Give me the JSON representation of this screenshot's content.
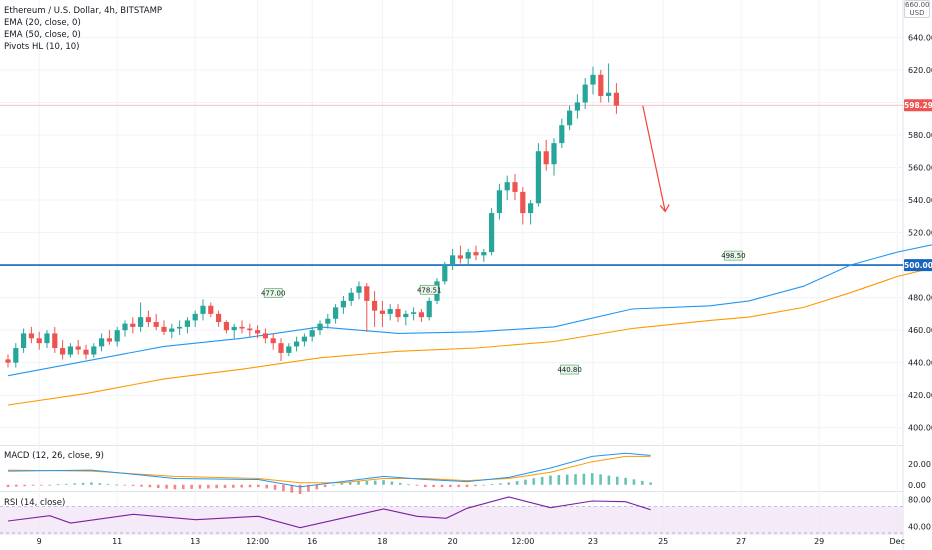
{
  "legend": {
    "symbol": "Ethereum / U.S. Dollar, 4h, BITSTAMP",
    "ema20": "EMA (20, close, 0)",
    "ema50": "EMA (50, close, 0)",
    "pivots": "Pivots HL (10, 10)"
  },
  "currency": "USD",
  "currency_top": "660.00",
  "macd_label": "MACD (12, 26, close, 9)",
  "rsi_label": "RSI (14, close)",
  "price_tag": "598.29",
  "level_tag": "500.00",
  "colors": {
    "up": "#26a69a",
    "down": "#ef5350",
    "ema20": "#2196f3",
    "ema50": "#ff9800",
    "level": "#1565c0",
    "arrow": "#f44336",
    "rsi": "#7b1fa2",
    "macd": "#2196f3",
    "signal": "#ff9800",
    "pivot_bg": "#e8f5e9"
  },
  "chart_data": [
    {
      "type": "candlestick",
      "title": "Ethereum / U.S. Dollar, 4h, BITSTAMP",
      "y_ticks": [
        "400.00",
        "420.00",
        "440.00",
        "460.00",
        "480.00",
        "500.00",
        "520.00",
        "540.00",
        "560.00",
        "580.00",
        "600.00",
        "620.00",
        "640.00"
      ],
      "x_ticks": [
        "9",
        "11",
        "13",
        "12:00",
        "16",
        "18",
        "20",
        "12:00",
        "23",
        "25",
        "27",
        "29",
        "Dec"
      ],
      "ylim": [
        390,
        663
      ],
      "candles": [
        [
          442,
          445,
          437,
          440
        ],
        [
          440,
          452,
          437,
          449
        ],
        [
          449,
          461,
          446,
          458
        ],
        [
          458,
          462,
          452,
          455
        ],
        [
          455,
          459,
          448,
          452
        ],
        [
          452,
          460,
          449,
          458
        ],
        [
          458,
          462,
          446,
          449
        ],
        [
          449,
          454,
          442,
          445
        ],
        [
          445,
          452,
          443,
          450
        ],
        [
          450,
          454,
          445,
          448
        ],
        [
          448,
          451,
          442,
          445
        ],
        [
          445,
          452,
          443,
          450
        ],
        [
          450,
          458,
          447,
          455
        ],
        [
          455,
          460,
          451,
          453
        ],
        [
          453,
          462,
          450,
          460
        ],
        [
          460,
          466,
          456,
          464
        ],
        [
          464,
          468,
          458,
          462
        ],
        [
          462,
          477,
          459,
          468
        ],
        [
          468,
          472,
          462,
          465
        ],
        [
          465,
          470,
          460,
          462
        ],
        [
          462,
          466,
          457,
          459
        ],
        [
          459,
          464,
          455,
          461
        ],
        [
          461,
          466,
          457,
          462
        ],
        [
          462,
          468,
          458,
          466
        ],
        [
          466,
          472,
          462,
          470
        ],
        [
          470,
          479,
          466,
          475
        ],
        [
          475,
          477,
          468,
          470
        ],
        [
          470,
          472,
          462,
          465
        ],
        [
          465,
          466,
          458,
          460
        ],
        [
          460,
          464,
          455,
          462
        ],
        [
          462,
          466,
          458,
          461
        ],
        [
          461,
          464,
          456,
          460
        ],
        [
          460,
          463,
          455,
          458
        ],
        [
          458,
          461,
          452,
          455
        ],
        [
          455,
          458,
          448,
          452
        ],
        [
          452,
          455,
          441,
          446
        ],
        [
          446,
          452,
          444,
          450
        ],
        [
          450,
          456,
          447,
          453
        ],
        [
          453,
          458,
          450,
          456
        ],
        [
          456,
          462,
          453,
          460
        ],
        [
          460,
          466,
          457,
          464
        ],
        [
          464,
          470,
          461,
          467
        ],
        [
          467,
          476,
          464,
          474
        ],
        [
          474,
          481,
          470,
          478
        ],
        [
          478,
          486,
          475,
          483
        ],
        [
          483,
          490,
          479,
          487
        ],
        [
          487,
          489,
          459,
          478
        ],
        [
          478,
          484,
          462,
          472
        ],
        [
          472,
          478,
          462,
          470
        ],
        [
          470,
          476,
          466,
          473
        ],
        [
          473,
          476,
          465,
          468
        ],
        [
          468,
          472,
          463,
          470
        ],
        [
          470,
          474,
          466,
          471
        ],
        [
          471,
          473,
          465,
          468
        ],
        [
          468,
          480,
          466,
          478
        ],
        [
          478,
          492,
          476,
          490
        ],
        [
          490,
          502,
          488,
          500
        ],
        [
          500,
          510,
          497,
          506
        ],
        [
          506,
          512,
          501,
          504
        ],
        [
          504,
          510,
          500,
          508
        ],
        [
          508,
          512,
          503,
          506
        ],
        [
          506,
          510,
          502,
          508
        ],
        [
          508,
          535,
          506,
          532
        ],
        [
          532,
          550,
          528,
          546
        ],
        [
          546,
          555,
          540,
          551
        ],
        [
          551,
          556,
          540,
          545
        ],
        [
          545,
          548,
          525,
          532
        ],
        [
          532,
          540,
          525,
          538
        ],
        [
          538,
          575,
          536,
          570
        ],
        [
          570,
          577,
          558,
          562
        ],
        [
          562,
          578,
          555,
          575
        ],
        [
          575,
          590,
          572,
          586
        ],
        [
          586,
          598,
          583,
          595
        ],
        [
          595,
          605,
          590,
          600
        ],
        [
          600,
          615,
          596,
          611
        ],
        [
          611,
          622,
          605,
          617
        ],
        [
          617,
          620,
          600,
          604
        ],
        [
          604,
          624,
          600,
          606
        ],
        [
          606,
          612,
          593,
          598
        ]
      ],
      "ema20": [
        [
          0,
          432
        ],
        [
          10,
          441
        ],
        [
          20,
          450
        ],
        [
          30,
          455
        ],
        [
          40,
          462
        ],
        [
          50,
          458
        ],
        [
          60,
          459
        ],
        [
          70,
          462
        ],
        [
          80,
          473
        ],
        [
          90,
          475
        ],
        [
          95,
          478
        ],
        [
          102,
          487
        ],
        [
          108,
          500
        ],
        [
          114,
          508
        ],
        [
          120,
          514
        ],
        [
          126,
          518
        ],
        [
          132,
          532
        ],
        [
          138,
          548
        ],
        [
          144,
          562
        ],
        [
          149,
          572
        ]
      ],
      "ema50": [
        [
          0,
          414
        ],
        [
          10,
          421
        ],
        [
          20,
          430
        ],
        [
          30,
          436
        ],
        [
          40,
          443
        ],
        [
          50,
          447
        ],
        [
          60,
          449
        ],
        [
          70,
          453
        ],
        [
          80,
          461
        ],
        [
          90,
          466
        ],
        [
          95,
          468
        ],
        [
          102,
          474
        ],
        [
          108,
          483
        ],
        [
          114,
          493
        ],
        [
          120,
          500
        ],
        [
          126,
          504
        ],
        [
          132,
          516
        ],
        [
          138,
          527
        ],
        [
          144,
          541
        ],
        [
          149,
          552
        ]
      ],
      "pivots_high": [
        {
          "x": 34,
          "value": 477,
          "label": "477.00"
        },
        {
          "x": 54,
          "value": 479,
          "label": "478.51"
        },
        {
          "x": 93,
          "value": 500,
          "label": "498.50"
        }
      ],
      "pivots_low": [
        {
          "x": 72,
          "value": 441,
          "label": "440.80"
        }
      ],
      "level": 500,
      "last_price": 598.29
    },
    {
      "type": "macd",
      "title": "MACD (12, 26, close, 9)",
      "y_ticks": [
        "20.00",
        "0.00"
      ],
      "ylim": [
        -5,
        36
      ],
      "macd": [
        [
          0,
          13
        ],
        [
          20,
          14
        ],
        [
          40,
          6
        ],
        [
          60,
          5
        ],
        [
          70,
          -2
        ],
        [
          80,
          3
        ],
        [
          90,
          8
        ],
        [
          100,
          5
        ],
        [
          110,
          3
        ],
        [
          120,
          7
        ],
        [
          130,
          16
        ],
        [
          140,
          27
        ],
        [
          148,
          30
        ],
        [
          154,
          28
        ]
      ],
      "signal": [
        [
          0,
          14
        ],
        [
          20,
          13
        ],
        [
          40,
          8
        ],
        [
          60,
          6
        ],
        [
          70,
          2
        ],
        [
          80,
          2
        ],
        [
          90,
          6
        ],
        [
          100,
          6
        ],
        [
          110,
          4
        ],
        [
          120,
          6
        ],
        [
          130,
          12
        ],
        [
          140,
          22
        ],
        [
          148,
          27
        ],
        [
          154,
          27
        ]
      ]
    },
    {
      "type": "rsi",
      "title": "RSI (14, close)",
      "y_ticks": [
        "80.00",
        "40.00"
      ],
      "ylim": [
        30,
        90
      ],
      "band": [
        30,
        70
      ],
      "rsi": [
        [
          0,
          48
        ],
        [
          10,
          56
        ],
        [
          15,
          45
        ],
        [
          30,
          58
        ],
        [
          45,
          50
        ],
        [
          60,
          55
        ],
        [
          70,
          38
        ],
        [
          80,
          52
        ],
        [
          90,
          66
        ],
        [
          98,
          55
        ],
        [
          105,
          52
        ],
        [
          110,
          67
        ],
        [
          120,
          84
        ],
        [
          130,
          68
        ],
        [
          140,
          78
        ],
        [
          148,
          77
        ],
        [
          154,
          65
        ]
      ]
    }
  ]
}
